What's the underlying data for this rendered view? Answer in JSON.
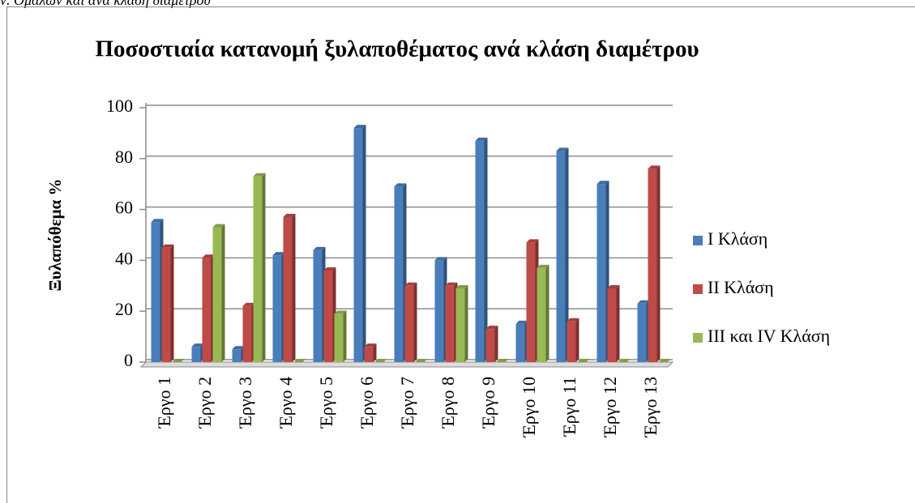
{
  "caption": "ν. Ομαλών και ανά κλάση διαμέτρου",
  "chart_data": {
    "type": "bar",
    "title": "Ποσοστιαία κατανομή ξυλαποθέματος ανά κλάση διαμέτρου",
    "y_label": "Ξυλαπόθεμα %",
    "categories": [
      "Έργο 1",
      "Έργο 2",
      "Έργο 3",
      "Έργο 4",
      "Έργο 5",
      "Έργο 6",
      "Έργο 7",
      "Έργο 8",
      "Έργο 9",
      "Έργο 10",
      "Έργο 11",
      "Έργο 12",
      "Έργο 13"
    ],
    "series": [
      {
        "name": "Ι Κλάση",
        "color": "#4a7ebb",
        "values": [
          55,
          6,
          5,
          42,
          44,
          92,
          69,
          40,
          87,
          15,
          83,
          70,
          23
        ]
      },
      {
        "name": "ΙΙ Κλάση",
        "color": "#be4b48",
        "values": [
          45,
          41,
          22,
          57,
          36,
          6,
          30,
          30,
          13,
          47,
          16,
          29,
          76
        ]
      },
      {
        "name": "ΙΙΙ και ΙV Κλάση",
        "color": "#98b954",
        "values": [
          0,
          53,
          73,
          0,
          19,
          0,
          0,
          29,
          0,
          37,
          0,
          0,
          0
        ]
      }
    ],
    "ylim": [
      0,
      100
    ],
    "yticks": [
      0,
      20,
      40,
      60,
      80,
      100
    ],
    "grid": true,
    "legend": "right"
  }
}
